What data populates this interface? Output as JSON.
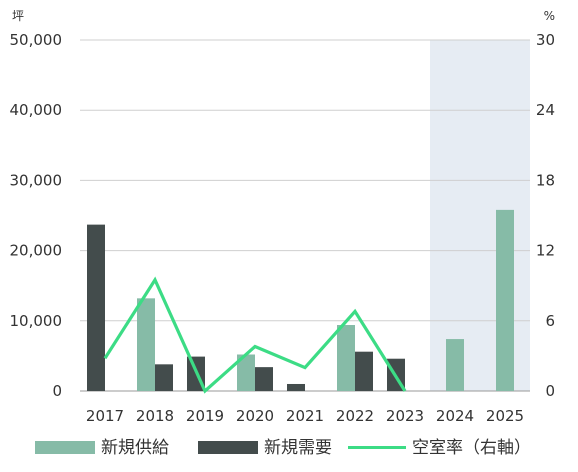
{
  "chart_data": {
    "type": "bar",
    "categories": [
      "2017",
      "2018",
      "2019",
      "2020",
      "2021",
      "2022",
      "2023",
      "2024",
      "2025"
    ],
    "series": [
      {
        "name": "新規供給",
        "kind": "bar",
        "axis": "left",
        "color": "#86bba7",
        "values": [
          0,
          13200,
          0,
          5200,
          0,
          9400,
          0,
          7400,
          25800
        ]
      },
      {
        "name": "新規需要",
        "kind": "bar",
        "axis": "left",
        "color": "#434c4c",
        "values": [
          23700,
          3800,
          4900,
          3400,
          1000,
          5600,
          4600,
          null,
          null
        ]
      },
      {
        "name": "空室率（右軸）",
        "kind": "line",
        "axis": "right",
        "color": "#3cdc85",
        "values": [
          2.8,
          9.5,
          0.0,
          3.8,
          2.0,
          6.8,
          0.0,
          null,
          null
        ]
      }
    ],
    "left_axis": {
      "unit": "坪",
      "ylim": [
        0,
        50000
      ],
      "ticks": [
        0,
        10000,
        20000,
        30000,
        40000,
        50000
      ],
      "tick_labels": [
        "0",
        "10,000",
        "20,000",
        "30,000",
        "40,000",
        "50,000"
      ]
    },
    "right_axis": {
      "unit": "%",
      "ylim": [
        0,
        30
      ],
      "ticks": [
        0,
        6,
        12,
        18,
        24,
        30
      ],
      "tick_labels": [
        "0",
        "6",
        "12",
        "18",
        "24",
        "30"
      ]
    },
    "highlight_categories": [
      "2024",
      "2025"
    ],
    "highlight_color": "#e6ecf3",
    "grid": true,
    "legend_position": "bottom"
  }
}
